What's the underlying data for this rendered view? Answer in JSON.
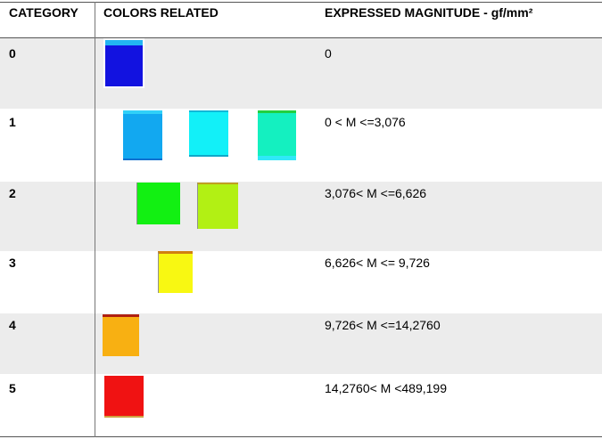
{
  "table": {
    "header": [
      "CATEGORY",
      "COLORS RELATED",
      "EXPRESSED MAGNITUDE - gf/mm²"
    ],
    "rows": [
      [
        "0",
        "0"
      ],
      [
        "1",
        "0 < M <=3,076"
      ],
      [
        "2",
        "3,076< M <=6,626"
      ],
      [
        "3",
        "6,626< M <= 9,726"
      ],
      [
        "4",
        "9,726< M <=14,2760"
      ],
      [
        "5",
        "14,2760< M <489,199"
      ]
    ]
  }
}
